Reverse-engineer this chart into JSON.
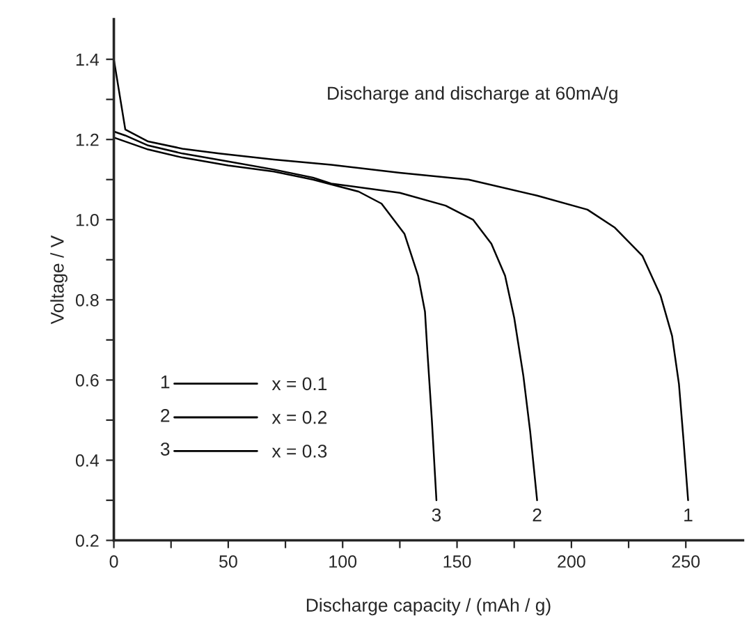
{
  "chart_data": {
    "type": "line",
    "title": "Discharge and discharge at 60mA/g",
    "xlabel": "Discharge capacity / (mAh / g)",
    "ylabel": "Voltage / V",
    "series": [
      {
        "name": "x = 0.1",
        "color": "#000000",
        "x": [
          0,
          5,
          15,
          30,
          46,
          70,
          95,
          125,
          155,
          185,
          207,
          219,
          231,
          239,
          244,
          247,
          249,
          251
        ],
        "values": [
          1.4,
          1.225,
          1.195,
          1.177,
          1.165,
          1.15,
          1.137,
          1.117,
          1.1,
          1.06,
          1.025,
          0.98,
          0.91,
          0.81,
          0.71,
          0.59,
          0.45,
          0.3
        ]
      },
      {
        "name": "x = 0.2",
        "color": "#000000",
        "x": [
          0,
          5,
          15,
          30,
          50,
          70,
          87,
          95,
          125,
          145,
          157,
          165,
          171,
          175,
          179,
          182,
          185
        ],
        "values": [
          1.22,
          1.21,
          1.185,
          1.165,
          1.145,
          1.125,
          1.105,
          1.09,
          1.067,
          1.035,
          1.0,
          0.94,
          0.86,
          0.755,
          0.61,
          0.47,
          0.3
        ]
      },
      {
        "name": "x = 0.3",
        "color": "#000000",
        "x": [
          0,
          5,
          15,
          30,
          50,
          70,
          87,
          107,
          117,
          127,
          133,
          136,
          137,
          139,
          141
        ],
        "values": [
          1.205,
          1.195,
          1.175,
          1.155,
          1.135,
          1.12,
          1.1,
          1.07,
          1.04,
          0.965,
          0.86,
          0.77,
          0.675,
          0.5,
          0.3
        ]
      }
    ],
    "annotations": [
      {
        "text": "1",
        "x": 251,
        "y": 0.3
      },
      {
        "text": "2",
        "x": 185,
        "y": 0.3
      },
      {
        "text": "3",
        "x": 141,
        "y": 0.3
      }
    ],
    "xlim": [
      0,
      275
    ],
    "ylim": [
      0.2,
      1.5
    ],
    "xticks": [
      0,
      {
        "value": 25,
        "label": null
      },
      50,
      {
        "value": 75,
        "label": null
      },
      100,
      {
        "value": 125,
        "label": null
      },
      150,
      {
        "value": 175,
        "label": null
      },
      200,
      {
        "value": 225,
        "label": null
      },
      250
    ],
    "yticks": [
      0.2,
      {
        "value": 0.3,
        "label": null
      },
      0.4,
      {
        "value": 0.5,
        "label": null
      },
      0.6,
      {
        "value": 0.7,
        "label": null
      },
      0.8,
      {
        "value": 0.9,
        "label": null
      },
      {
        "value": 1.0,
        "label": "1.0"
      },
      {
        "value": 1.1,
        "label": null
      },
      1.2,
      {
        "value": 1.3,
        "label": null
      },
      1.4
    ],
    "grid": false,
    "legend": "lower left",
    "marker": "none",
    "line_style": "solid"
  }
}
